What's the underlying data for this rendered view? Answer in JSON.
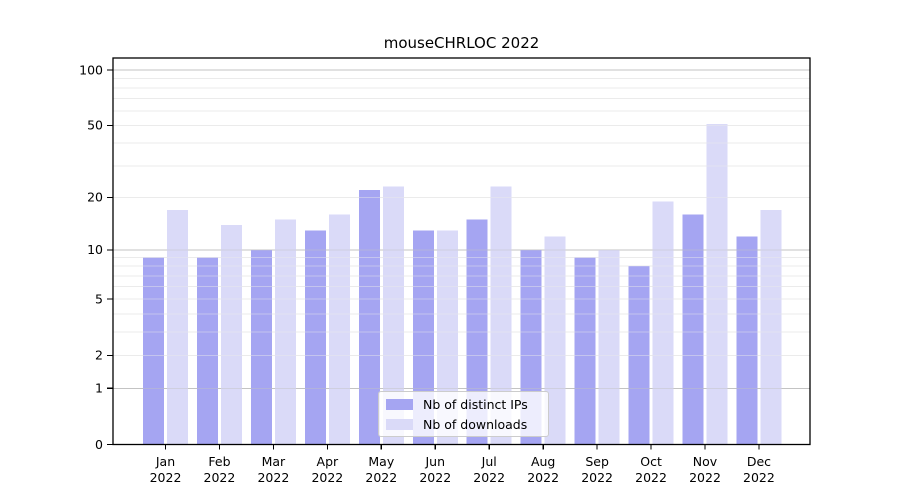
{
  "chart_data": {
    "type": "bar",
    "title": "mouseCHRLOC 2022",
    "categories": [
      "Jan",
      "Feb",
      "Mar",
      "Apr",
      "May",
      "Jun",
      "Jul",
      "Aug",
      "Sep",
      "Oct",
      "Nov",
      "Dec"
    ],
    "year": "2022",
    "series": [
      {
        "name": "Nb of distinct IPs",
        "color": "#a5a5f2",
        "values": [
          9,
          9,
          10,
          13,
          22,
          13,
          15,
          10,
          9,
          8,
          16,
          12
        ]
      },
      {
        "name": "Nb of downloads",
        "color": "#dadaf8",
        "values": [
          17,
          14,
          15,
          16,
          23,
          13,
          23,
          12,
          10,
          19,
          51,
          17
        ]
      }
    ],
    "y_scale": "log1p",
    "ylim": [
      0,
      116
    ],
    "y_tick_values": [
      0,
      1,
      2,
      5,
      10,
      20,
      50,
      100
    ],
    "y_major_grid_values": [
      1,
      10,
      100
    ],
    "y_minor_grid_values": [
      2,
      3,
      4,
      5,
      6,
      7,
      8,
      9,
      20,
      30,
      40,
      50,
      60,
      70,
      80,
      90
    ],
    "grid": true,
    "legend_position": "lower center inside"
  },
  "colors": {
    "background": "#ffffff",
    "axis": "#000000",
    "grid_major": "#c3c3c3",
    "grid_minor": "#ebebeb",
    "text": "#000000",
    "legend_border": "#cccccc",
    "legend_background": "rgba(255,255,255,0.8)"
  }
}
